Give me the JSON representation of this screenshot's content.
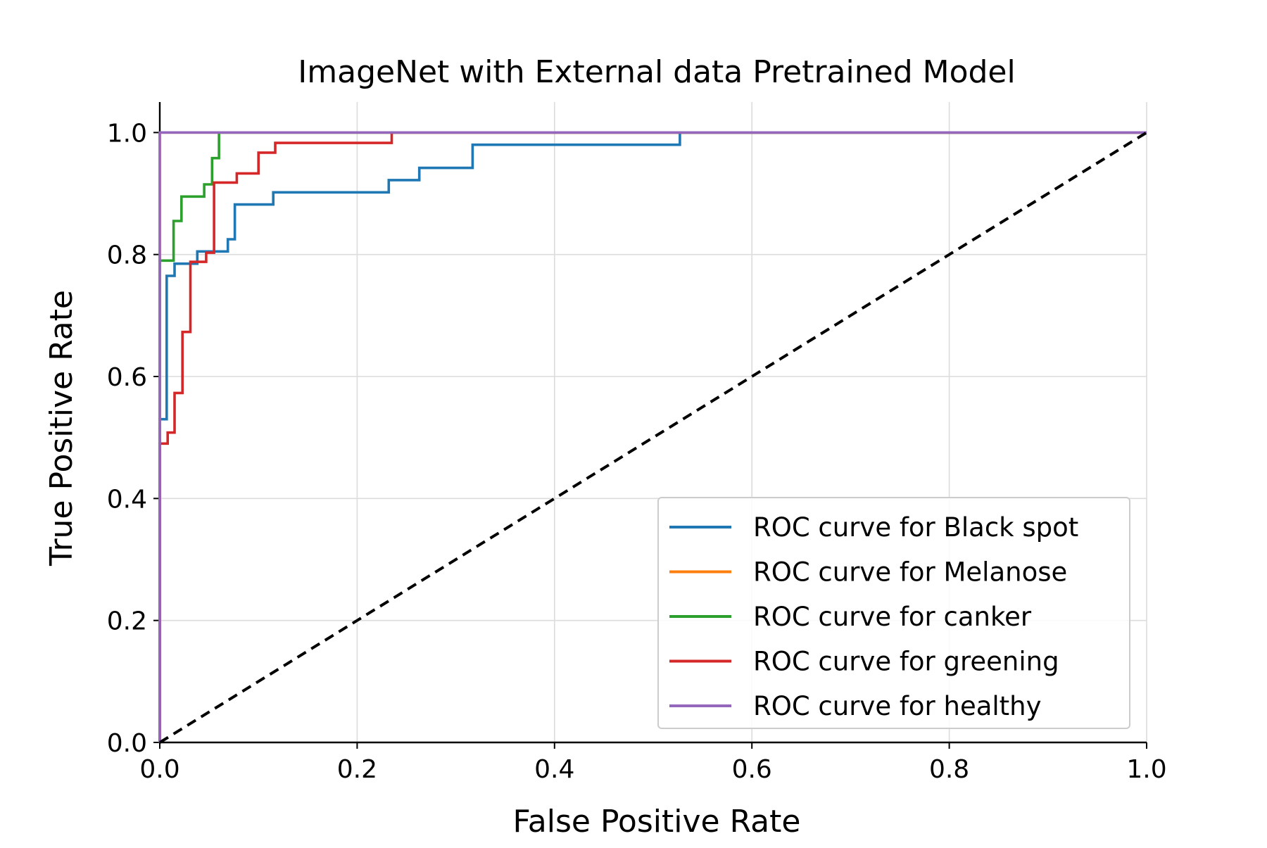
{
  "chart_data": {
    "type": "line",
    "title": "ImageNet with External data Pretrained Model",
    "xlabel": "False Positive Rate",
    "ylabel": "True Positive Rate",
    "xlim": [
      0.0,
      1.0
    ],
    "ylim": [
      0.0,
      1.05
    ],
    "xticks": [
      "0.0",
      "0.2",
      "0.4",
      "0.6",
      "0.8",
      "1.0"
    ],
    "yticks": [
      "0.0",
      "0.2",
      "0.4",
      "0.6",
      "0.8",
      "1.0"
    ],
    "grid": true,
    "legend_position": "lower-right",
    "series": [
      {
        "name": "ROC curve for Black spot",
        "color": "#1f77b4",
        "x": [
          0.0,
          0.0,
          0.0,
          0.007,
          0.007,
          0.015,
          0.015,
          0.038,
          0.038,
          0.069,
          0.069,
          0.076,
          0.076,
          0.115,
          0.115,
          0.232,
          0.232,
          0.263,
          0.263,
          0.317,
          0.317,
          0.527,
          0.527,
          1.0
        ],
        "y": [
          0.0,
          0.53,
          0.53,
          0.53,
          0.765,
          0.765,
          0.785,
          0.785,
          0.805,
          0.805,
          0.825,
          0.825,
          0.882,
          0.882,
          0.902,
          0.902,
          0.922,
          0.922,
          0.942,
          0.942,
          0.98,
          0.98,
          1.0,
          1.0
        ]
      },
      {
        "name": "ROC curve for Melanose",
        "color": "#ff7f0e",
        "x": [
          0.0,
          0.0,
          1.0
        ],
        "y": [
          0.0,
          1.0,
          1.0
        ]
      },
      {
        "name": "ROC curve for canker",
        "color": "#2ca02c",
        "x": [
          0.0,
          0.0,
          0.0,
          0.014,
          0.014,
          0.022,
          0.022,
          0.045,
          0.045,
          0.053,
          0.053,
          0.06,
          0.06,
          1.0
        ],
        "y": [
          0.0,
          0.79,
          0.79,
          0.79,
          0.855,
          0.855,
          0.895,
          0.895,
          0.915,
          0.915,
          0.958,
          0.958,
          1.0,
          1.0
        ]
      },
      {
        "name": "ROC curve for greening",
        "color": "#d62728",
        "x": [
          0.0,
          0.0,
          0.008,
          0.008,
          0.015,
          0.015,
          0.023,
          0.023,
          0.031,
          0.031,
          0.047,
          0.047,
          0.055,
          0.055,
          0.078,
          0.078,
          0.1,
          0.1,
          0.117,
          0.117,
          0.235,
          0.235,
          1.0
        ],
        "y": [
          0.0,
          0.49,
          0.49,
          0.508,
          0.508,
          0.573,
          0.573,
          0.673,
          0.673,
          0.788,
          0.788,
          0.803,
          0.803,
          0.918,
          0.918,
          0.933,
          0.933,
          0.967,
          0.967,
          0.983,
          0.983,
          1.0,
          1.0
        ]
      },
      {
        "name": "ROC curve for healthy",
        "color": "#9467bd",
        "x": [
          0.0,
          0.0,
          1.0
        ],
        "y": [
          0.0,
          1.0,
          1.0
        ]
      }
    ],
    "reference_line": {
      "x": [
        0.0,
        1.0
      ],
      "y": [
        0.0,
        1.0
      ],
      "color": "#000000",
      "style": "dashed"
    }
  }
}
